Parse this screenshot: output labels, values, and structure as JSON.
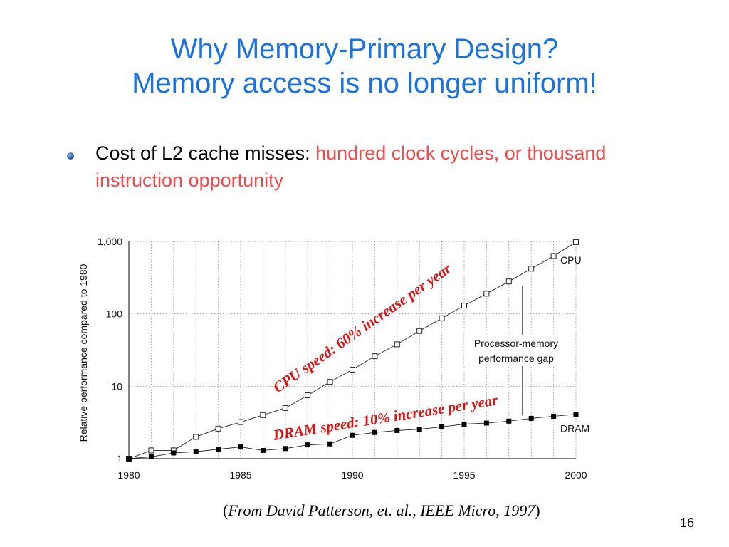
{
  "slide": {
    "title_line1": "Why Memory-Primary Design?",
    "title_line2": "Memory access is no longer uniform!",
    "bullet_prefix": "Cost of L2 cache misses: ",
    "bullet_highlight": "hundred clock cycles, or thousand instruction opportunity",
    "source_open": "(",
    "source_italic": "From David Patterson, et. al., IEEE Micro, 1997",
    "source_close": ")",
    "page_number": "16",
    "accent_color": "#1a72e0",
    "highlight_color": "#f04a4a",
    "annotation_color": "#dd1111"
  },
  "chart_data": {
    "type": "line",
    "ylabel": "Relative performance compared to 1980",
    "xlabel": "",
    "xlim": [
      1980,
      2000
    ],
    "ylim": [
      1,
      1000
    ],
    "yscale": "log",
    "grid": true,
    "x_ticks": [
      "1980",
      "1985",
      "1990",
      "1995",
      "2000"
    ],
    "y_ticks": [
      "1",
      "10",
      "100",
      "1,000"
    ],
    "series": [
      {
        "name": "CPU",
        "marker": "open-square",
        "x": [
          1980,
          1981,
          1982,
          1983,
          1984,
          1985,
          1986,
          1987,
          1988,
          1989,
          1990,
          1991,
          1992,
          1993,
          1994,
          1995,
          1996,
          1997,
          1998,
          1999,
          2000
        ],
        "values": [
          1.0,
          1.3,
          1.3,
          2.0,
          2.6,
          3.2,
          4.0,
          5.0,
          7.5,
          11.5,
          17,
          26,
          38,
          58,
          87,
          130,
          190,
          280,
          420,
          630,
          980
        ]
      },
      {
        "name": "DRAM",
        "marker": "filled-square",
        "x": [
          1980,
          1981,
          1982,
          1983,
          1984,
          1985,
          1986,
          1987,
          1988,
          1989,
          1990,
          1991,
          1992,
          1993,
          1994,
          1995,
          1996,
          1997,
          1998,
          1999,
          2000
        ],
        "values": [
          1.0,
          1.06,
          1.2,
          1.25,
          1.35,
          1.45,
          1.3,
          1.38,
          1.55,
          1.6,
          2.1,
          2.3,
          2.45,
          2.55,
          2.75,
          3.0,
          3.1,
          3.3,
          3.6,
          3.85,
          4.1
        ]
      }
    ],
    "annotations": {
      "cpu_speed": "CPU speed: 60% increase per year",
      "dram_speed": "DRAM speed: 10% increase per year",
      "gap_line1": "Processor-memory",
      "gap_line2": "performance gap"
    }
  }
}
